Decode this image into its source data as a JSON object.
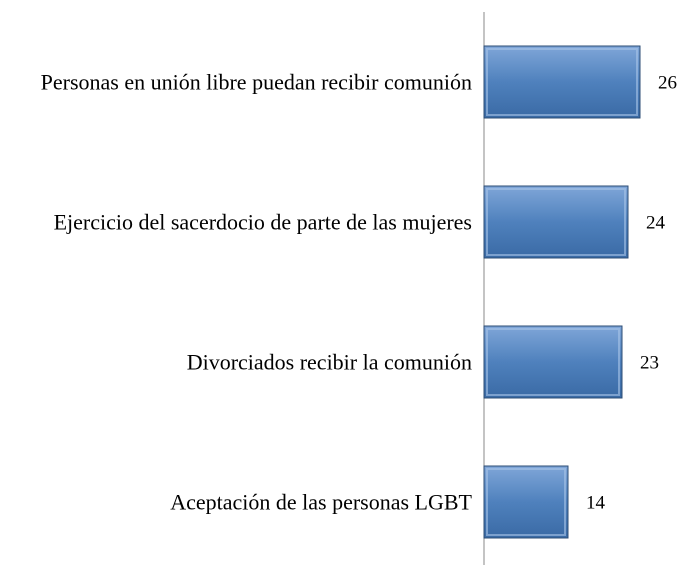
{
  "chart_data": {
    "type": "barh",
    "categories": [
      "Personas en unión libre puedan recibir comunión",
      "Ejercicio del sacerdocio de parte de las mujeres",
      "Divorciados recibir la comunión",
      "Aceptación de las personas LGBT"
    ],
    "values": [
      26,
      24,
      23,
      14
    ],
    "color": "#4f81bd",
    "xlim": [
      0,
      30
    ]
  }
}
